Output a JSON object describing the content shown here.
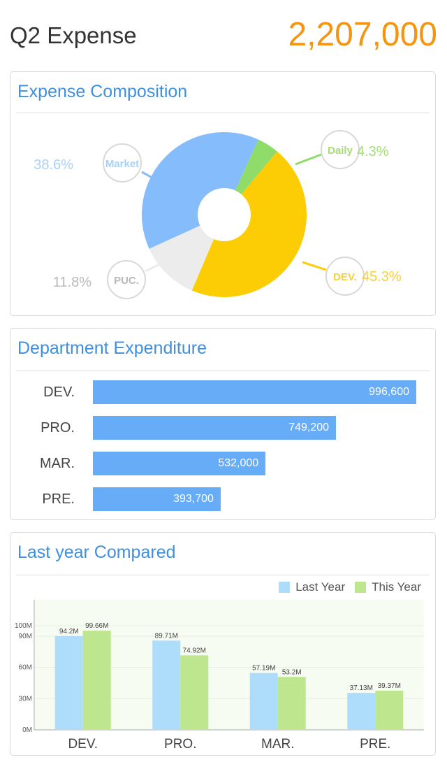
{
  "header": {
    "title": "Q2 Expense",
    "total": "2,207,000"
  },
  "composition": {
    "title": "Expense Composition",
    "chart_data": {
      "type": "pie",
      "title": "Expense Composition",
      "slices": [
        {
          "label": "Market",
          "value": 38.6,
          "percent_label": "38.6%",
          "color": "#85bcfb",
          "text_color": "#a8d1fb"
        },
        {
          "label": "Daily",
          "value": 4.3,
          "percent_label": "4.3%",
          "color": "#8fdc6a",
          "text_color": "#a6dd78"
        },
        {
          "label": "DEV.",
          "value": 45.3,
          "percent_label": "45.3%",
          "color": "#fccc04",
          "text_color": "#f8cf3c"
        },
        {
          "label": "PUC.",
          "value": 11.8,
          "percent_label": "11.8%",
          "color": "#ececec",
          "text_color": "#b9b9b9"
        }
      ]
    }
  },
  "department": {
    "title": "Department Expenditure",
    "chart_data": {
      "type": "bar",
      "orientation": "horizontal",
      "title": "Department Expenditure",
      "categories": [
        "DEV.",
        "PRO.",
        "MAR.",
        "PRE."
      ],
      "values": [
        996600,
        749200,
        532000,
        393700
      ],
      "value_labels": [
        "996,600",
        "749,200",
        "532,000",
        "393,700"
      ],
      "color": "#67acf7"
    }
  },
  "comparison": {
    "title": "Last year Compared",
    "chart_data": {
      "type": "bar",
      "title": "Last year Compared",
      "categories": [
        "DEV.",
        "PRO.",
        "MAR.",
        "PRE."
      ],
      "series": [
        {
          "name": "Last Year",
          "values": [
            94.2,
            89.71,
            57.19,
            37.13
          ],
          "labels": [
            "94.2M",
            "89.71M",
            "57.19M",
            "37.13M"
          ],
          "color": "#aedcfb"
        },
        {
          "name": "This Year",
          "values": [
            99.66,
            74.92,
            53.2,
            39.37
          ],
          "labels": [
            "99.66M",
            "74.92M",
            "53.2M",
            "39.37M"
          ],
          "color": "#bde68e"
        }
      ],
      "y_ticks": [
        "0M",
        "30M",
        "60M",
        "90M",
        "100M"
      ],
      "legend": "top-right",
      "grid": true
    }
  }
}
